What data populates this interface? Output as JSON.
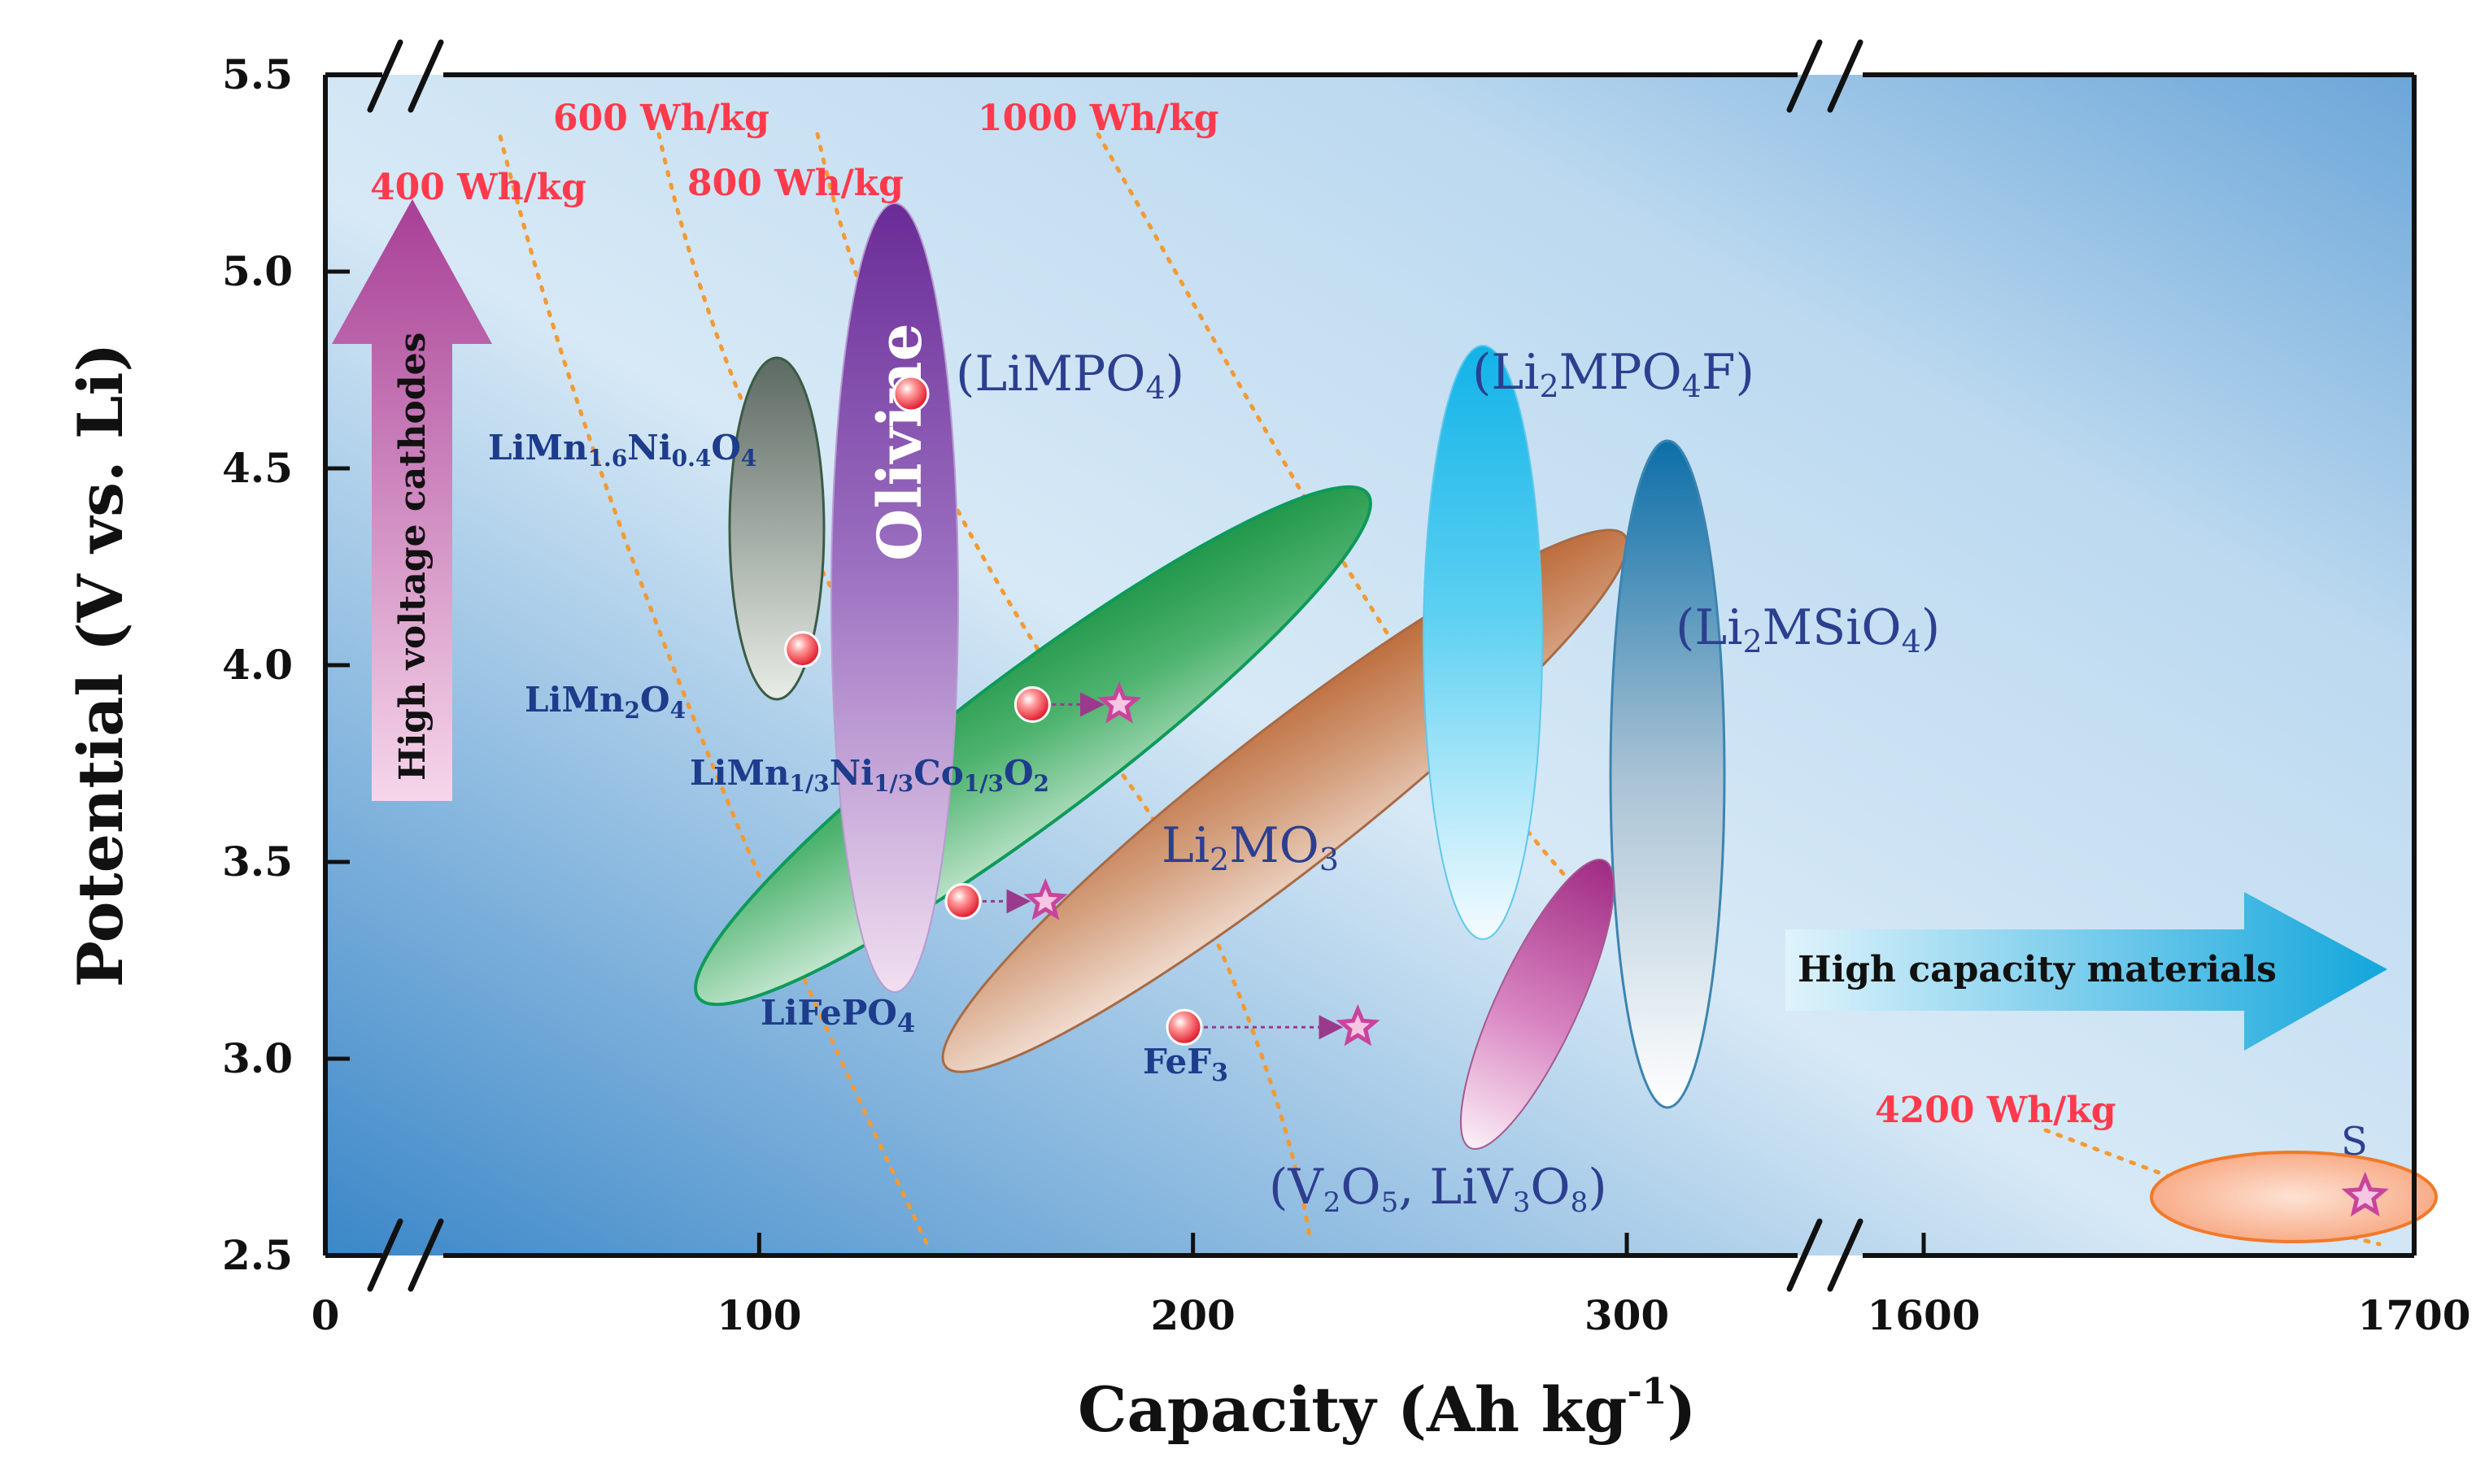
{
  "chart_data": {
    "type": "scatter",
    "title": "",
    "xlabel": "Capacity (Ah kg",
    "xlabel_sup": "-1",
    "xlabel_close": ")",
    "ylabel": "Potential (V vs. Li)",
    "ylim": [
      2.5,
      5.5
    ],
    "x_segments": [
      {
        "range": [
          0,
          330
        ],
        "ticks": [
          "0",
          "100",
          "200",
          "300"
        ],
        "tick_values": [
          0,
          100,
          200,
          300
        ]
      },
      {
        "range": [
          1570,
          1700
        ],
        "ticks": [
          "1600",
          "1700"
        ],
        "tick_values": [
          1600,
          1700
        ]
      }
    ],
    "y_ticks": [
      "2.5",
      "3.0",
      "3.5",
      "4.0",
      "4.5",
      "5.0",
      "5.5"
    ],
    "y_tick_values": [
      2.5,
      3.0,
      3.5,
      4.0,
      4.5,
      5.0,
      5.5
    ],
    "energy_density_lines": [
      {
        "label": "400 Wh/kg",
        "wh_per_kg": 400
      },
      {
        "label": "600 Wh/kg",
        "wh_per_kg": 600
      },
      {
        "label": "800 Wh/kg",
        "wh_per_kg": 800
      },
      {
        "label": "1000 Wh/kg",
        "wh_per_kg": 1000
      },
      {
        "label": "4200 Wh/kg",
        "wh_per_kg": 4200
      }
    ],
    "material_families": [
      {
        "name": "Olivine",
        "label": "(LiMPO",
        "sub": "4",
        "close": ")",
        "capacity_range": [
          145,
          165
        ],
        "potential_range": [
          3.3,
          5.2
        ],
        "color": "#7b3fa0"
      },
      {
        "name": "Li2MPO4F",
        "label_parts": [
          "(Li",
          "2",
          "MPO",
          "4",
          "F)"
        ],
        "capacity_range": [
          260,
          280
        ],
        "potential_range": [
          3.3,
          5.25
        ],
        "color": "#1cb6e6"
      },
      {
        "name": "Li2MSiO4",
        "label_parts": [
          "(Li",
          "2",
          "MSiO",
          "4",
          ")"
        ],
        "capacity_range": [
          295,
          320
        ],
        "potential_range": [
          2.9,
          4.55
        ],
        "color": "#1e6aa0"
      },
      {
        "name": "Li2MO3",
        "label_parts": [
          "Li",
          "2",
          "MO",
          "3"
        ],
        "capacity_range": [
          150,
          330
        ],
        "potential_range": [
          2.8,
          4.65
        ],
        "color": "#b5602a"
      },
      {
        "name": "Layered",
        "capacity_range": [
          80,
          280
        ],
        "potential_range": [
          2.9,
          5.0
        ],
        "color": "#1f9a4e"
      },
      {
        "name": "V2O5, LiV3O8",
        "label_parts": [
          "(V",
          "2",
          "O",
          "5",
          ", LiV",
          "3",
          "O",
          "8",
          ")"
        ],
        "capacity_range": [
          265,
          305
        ],
        "potential_range": [
          2.65,
          3.5
        ],
        "color": "#a9357f"
      },
      {
        "name": "Sulfur",
        "capacity_range": [
          1625,
          1700
        ],
        "potential_range": [
          2.55,
          2.75
        ],
        "color": "#f59a6c"
      }
    ],
    "materials": [
      {
        "name": "LiMn1.6Ni0.4O4",
        "label_parts": [
          "LiMn",
          "1.6",
          "Ni",
          "0.4",
          "O",
          "4"
        ],
        "capacity": 135,
        "potential": 4.69
      },
      {
        "name": "LiMn2O4",
        "label_parts": [
          "LiMn",
          "2",
          "O",
          "4"
        ],
        "capacity": 110,
        "potential": 4.04
      },
      {
        "name": "LiMn1/3Ni1/3Co1/3O2",
        "label_parts": [
          "LiMn",
          "1/3",
          "Ni",
          "1/3",
          "Co",
          "1/3",
          "O",
          "2"
        ],
        "capacity": 163,
        "potential": 3.9,
        "target_capacity": 183
      },
      {
        "name": "LiFePO4",
        "label_parts": [
          "LiFePO",
          "4"
        ],
        "capacity": 147,
        "potential": 3.4,
        "target_capacity": 166
      },
      {
        "name": "FeF3",
        "label_parts": [
          "FeF",
          "3"
        ],
        "capacity": 198,
        "potential": 3.08,
        "target_capacity": 238
      },
      {
        "name": "S",
        "label_parts": [
          "S"
        ],
        "capacity": 1690,
        "potential": 2.65,
        "marker": "star"
      }
    ],
    "annotations": {
      "high_voltage": "High voltage cathodes",
      "high_capacity": "High capacity materials",
      "olivine": "Olivine"
    }
  }
}
